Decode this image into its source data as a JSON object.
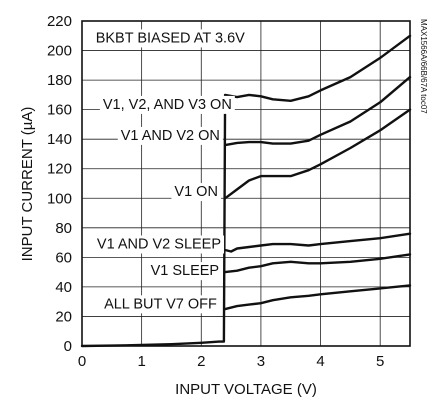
{
  "chart_data": {
    "type": "line",
    "xlabel": "INPUT VOLTAGE (V)",
    "ylabel": "INPUT CURRENT (µA)",
    "xlim": [
      0,
      5.5
    ],
    "ylim": [
      0,
      220
    ],
    "xticks": [
      0,
      1,
      2,
      3,
      4,
      5
    ],
    "yticks": [
      0,
      20,
      40,
      60,
      80,
      100,
      120,
      140,
      160,
      180,
      200,
      220
    ],
    "grid": true,
    "legend": "none",
    "side_note": "MAX1566A/66B/67A toc07",
    "top_annotation": "BKBT BIASED AT 3.6V",
    "series": [
      {
        "label": "V1, V2, AND V3 ON",
        "x": [
          0,
          0.5,
          1,
          1.5,
          2,
          2.3,
          2.38,
          2.4,
          2.6,
          2.8,
          3,
          3.2,
          3.5,
          3.8,
          4,
          4.5,
          5,
          5.5
        ],
        "y": [
          0,
          0.3,
          0.7,
          1.2,
          2.2,
          3,
          3,
          170,
          168.5,
          170,
          169,
          167,
          166,
          169,
          173,
          182,
          195,
          210
        ]
      },
      {
        "label": "V1 AND V2 ON",
        "x": [
          2.4,
          2.6,
          2.8,
          3,
          3.2,
          3.5,
          3.8,
          4,
          4.5,
          5,
          5.5
        ],
        "y": [
          136,
          137.5,
          138,
          138,
          137,
          137,
          139,
          143,
          152,
          165,
          182
        ]
      },
      {
        "label": "V1 ON",
        "x": [
          2.4,
          2.6,
          2.8,
          3,
          3.2,
          3.5,
          3.8,
          4,
          4.5,
          5,
          5.5
        ],
        "y": [
          100,
          106,
          112,
          115,
          115,
          115,
          119,
          123,
          134,
          146,
          160
        ]
      },
      {
        "label": "V1 AND V2 SLEEP",
        "x": [
          2.4,
          2.5,
          2.6,
          2.8,
          3,
          3.2,
          3.5,
          3.8,
          4,
          4.5,
          5,
          5.5
        ],
        "y": [
          65,
          64,
          66,
          67,
          68,
          69,
          69,
          68,
          69,
          71,
          73,
          76
        ]
      },
      {
        "label": "V1 SLEEP",
        "x": [
          2.4,
          2.6,
          2.8,
          3,
          3.2,
          3.5,
          3.8,
          4,
          4.5,
          5,
          5.5
        ],
        "y": [
          50,
          51,
          53,
          54,
          56,
          57,
          56,
          56,
          57,
          59,
          62
        ]
      },
      {
        "label": "ALL BUT V7 OFF",
        "x": [
          2.4,
          2.6,
          2.8,
          3,
          3.2,
          3.5,
          3.8,
          4,
          4.5,
          5,
          5.5
        ],
        "y": [
          25,
          27,
          28,
          29,
          31,
          33,
          34,
          35,
          37,
          39,
          41
        ]
      }
    ]
  }
}
